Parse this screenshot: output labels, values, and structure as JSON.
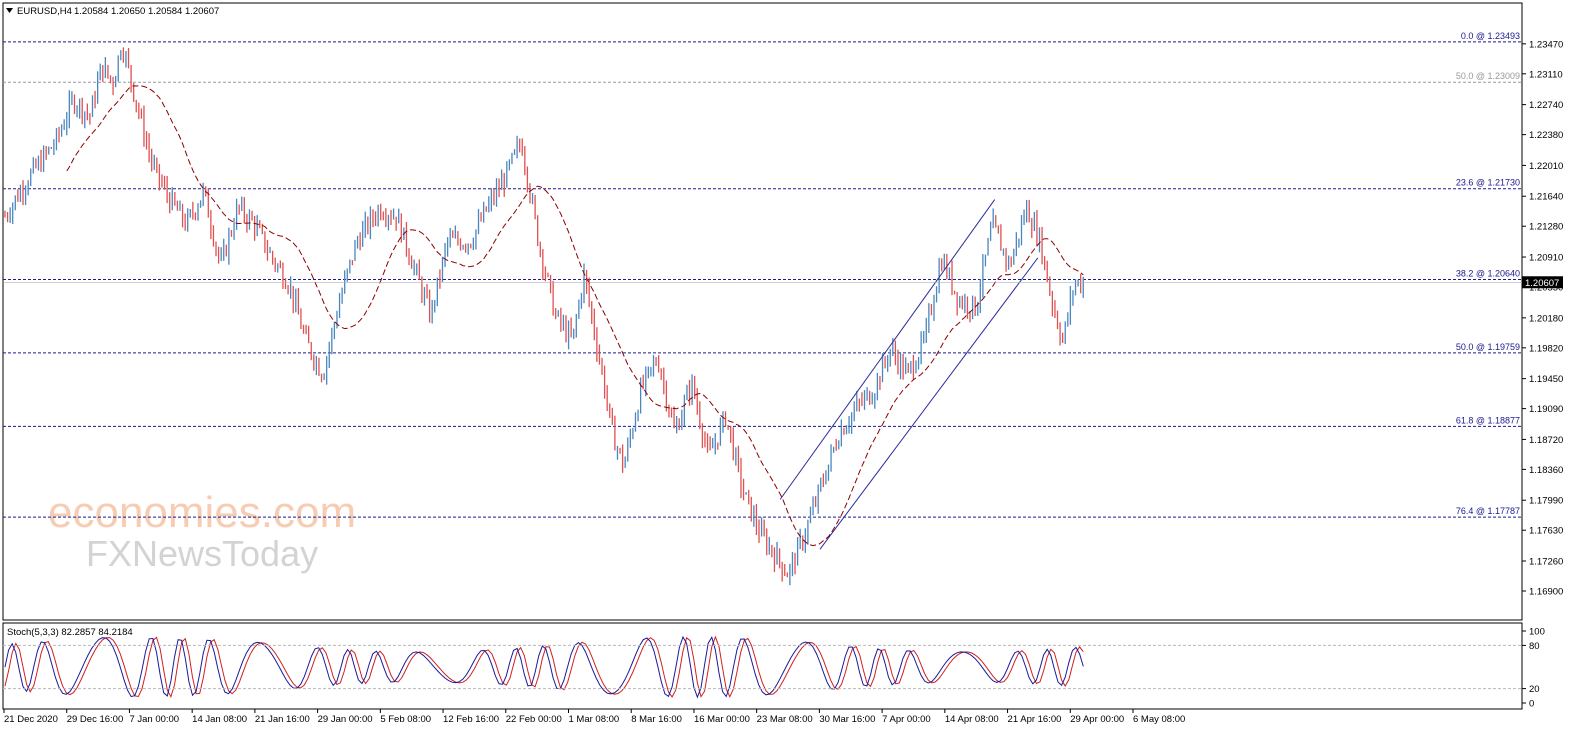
{
  "header": {
    "symbol": "EURUSD,H4",
    "ohlc": "1.20584 1.20650 1.20584 1.20607"
  },
  "watermark": {
    "line1": "economies.com",
    "line2": "FXNewsToday"
  },
  "oscillator": {
    "label": "Stoch(5,3,3) 82.2857 84.2184",
    "levels": [
      "100",
      "80",
      "20",
      "0"
    ]
  },
  "chart_data": {
    "type": "candlestick",
    "instrument": "EURUSD",
    "timeframe": "H4",
    "current_price": "1.20607",
    "ylim": [
      1.169,
      1.236
    ],
    "price_axis_ticks": [
      "1.23470",
      "1.23110",
      "1.22740",
      "1.22380",
      "1.22010",
      "1.21640",
      "1.21280",
      "1.20910",
      "1.20550",
      "1.20180",
      "1.19820",
      "1.19450",
      "1.19090",
      "1.18720",
      "1.18360",
      "1.17990",
      "1.17630",
      "1.17260",
      "1.16900"
    ],
    "time_axis_ticks": [
      "21 Dec 2020",
      "29 Dec 16:00",
      "7 Jan 00:00",
      "14 Jan 08:00",
      "21 Jan 16:00",
      "29 Jan 00:00",
      "5 Feb 08:00",
      "12 Feb 16:00",
      "22 Feb 00:00",
      "1 Mar 08:00",
      "8 Mar 16:00",
      "16 Mar 00:00",
      "23 Mar 08:00",
      "30 Mar 16:00",
      "7 Apr 00:00",
      "14 Apr 08:00",
      "21 Apr 16:00",
      "29 Apr 00:00",
      "6 May 08:00"
    ],
    "fibonacci_levels": [
      {
        "label": "0.0 @ 1.23493",
        "price": 1.23493
      },
      {
        "label": "50.0 @ 1.23009",
        "price": 1.23009,
        "muted": true
      },
      {
        "label": "23.6 @ 1.21730",
        "price": 1.2173
      },
      {
        "label": "38.2 @ 1.20640",
        "price": 1.2064
      },
      {
        "label": "50.0 @ 1.19759",
        "price": 1.19759
      },
      {
        "label": "61.8 @ 1.18877",
        "price": 1.18877
      },
      {
        "label": "76.4 @ 1.17787",
        "price": 1.17787
      }
    ],
    "price_path": [
      [
        0,
        1.214
      ],
      [
        0.02,
        1.2185
      ],
      [
        0.045,
        1.223
      ],
      [
        0.06,
        1.228
      ],
      [
        0.075,
        1.226
      ],
      [
        0.085,
        1.232
      ],
      [
        0.095,
        1.23
      ],
      [
        0.103,
        1.2349
      ],
      [
        0.115,
        1.228
      ],
      [
        0.13,
        1.22
      ],
      [
        0.145,
        1.216
      ],
      [
        0.16,
        1.213
      ],
      [
        0.175,
        1.217
      ],
      [
        0.19,
        1.208
      ],
      [
        0.205,
        1.215
      ],
      [
        0.22,
        1.213
      ],
      [
        0.235,
        1.209
      ],
      [
        0.25,
        1.206
      ],
      [
        0.265,
        1.199
      ],
      [
        0.28,
        1.195
      ],
      [
        0.295,
        1.204
      ],
      [
        0.31,
        1.211
      ],
      [
        0.33,
        1.215
      ],
      [
        0.345,
        1.214
      ],
      [
        0.36,
        1.208
      ],
      [
        0.375,
        1.202
      ],
      [
        0.39,
        1.211
      ],
      [
        0.41,
        1.211
      ],
      [
        0.425,
        1.215
      ],
      [
        0.44,
        1.2185
      ],
      [
        0.455,
        1.223
      ],
      [
        0.47,
        1.211
      ],
      [
        0.485,
        1.202
      ],
      [
        0.5,
        1.199
      ],
      [
        0.51,
        1.207
      ],
      [
        0.525,
        1.196
      ],
      [
        0.535,
        1.188
      ],
      [
        0.545,
        1.184
      ],
      [
        0.56,
        1.193
      ],
      [
        0.575,
        1.197
      ],
      [
        0.59,
        1.188
      ],
      [
        0.605,
        1.194
      ],
      [
        0.62,
        1.185
      ],
      [
        0.635,
        1.19
      ],
      [
        0.65,
        1.181
      ],
      [
        0.665,
        1.176
      ],
      [
        0.68,
        1.173
      ],
      [
        0.69,
        1.171
      ],
      [
        0.705,
        1.176
      ],
      [
        0.72,
        1.182
      ],
      [
        0.735,
        1.188
      ],
      [
        0.75,
        1.191
      ],
      [
        0.765,
        1.193
      ],
      [
        0.78,
        1.198
      ],
      [
        0.795,
        1.195
      ],
      [
        0.81,
        1.199
      ],
      [
        0.825,
        1.209
      ],
      [
        0.84,
        1.204
      ],
      [
        0.855,
        1.203
      ],
      [
        0.87,
        1.213
      ],
      [
        0.885,
        1.208
      ],
      [
        0.9,
        1.215
      ],
      [
        0.912,
        1.211
      ],
      [
        0.922,
        1.204
      ],
      [
        0.932,
        1.199
      ],
      [
        0.942,
        1.206
      ],
      [
        0.95,
        1.206
      ]
    ],
    "moving_average": {
      "style": "dashed",
      "color": "#8b0000"
    },
    "trend_channel": {
      "upper": [
        [
          0.683,
          1.18
        ],
        [
          0.872,
          1.216
        ]
      ],
      "lower": [
        [
          0.718,
          1.174
        ],
        [
          0.91,
          1.209
        ]
      ]
    },
    "stochastic": {
      "params": "5,3,3",
      "main": 82.2857,
      "signal": 84.2184,
      "ylim": [
        0,
        100
      ],
      "levels": [
        80,
        20
      ]
    }
  },
  "colors": {
    "bull": "#4a86c0",
    "bear": "#e05050",
    "fib_line": "#1a1a8c",
    "fib_muted": "#9a9a9a",
    "ma": "#8b0000",
    "channel": "#2a2a9a",
    "stoch_main": "#1a1a9c",
    "stoch_signal": "#d02020",
    "watermark_a": "#f5c4a6",
    "watermark_b": "#c8c8c8"
  }
}
